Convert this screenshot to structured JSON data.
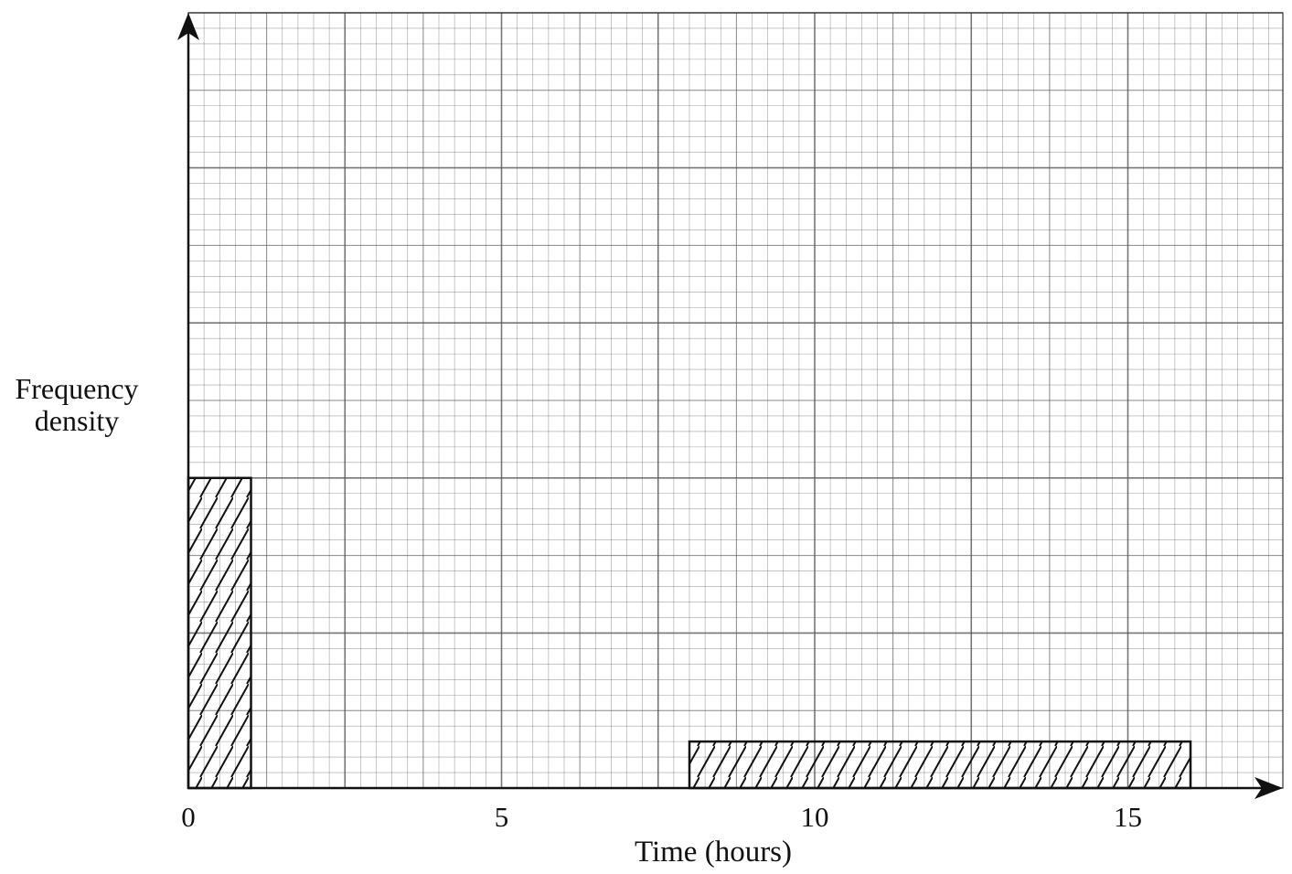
{
  "chart_data": {
    "type": "bar",
    "subtype": "histogram",
    "title": "",
    "xlabel": "Time (hours)",
    "ylabel": [
      "Frequency",
      "density"
    ],
    "xlim": [
      0,
      17.5
    ],
    "x_ticks": [
      0,
      5,
      10,
      15
    ],
    "x_tick_labels": [
      "0",
      "5",
      "10",
      "15"
    ],
    "y_ticks": [],
    "grid": true,
    "bars": [
      {
        "x_start": 0,
        "x_end": 1,
        "height": 20,
        "hatched": true
      },
      {
        "x_start": 8,
        "x_end": 16,
        "height": 3,
        "hatched": true
      }
    ],
    "y_grid_max": 50,
    "colors": {
      "ink": "#111111",
      "grid": "#555555"
    }
  }
}
